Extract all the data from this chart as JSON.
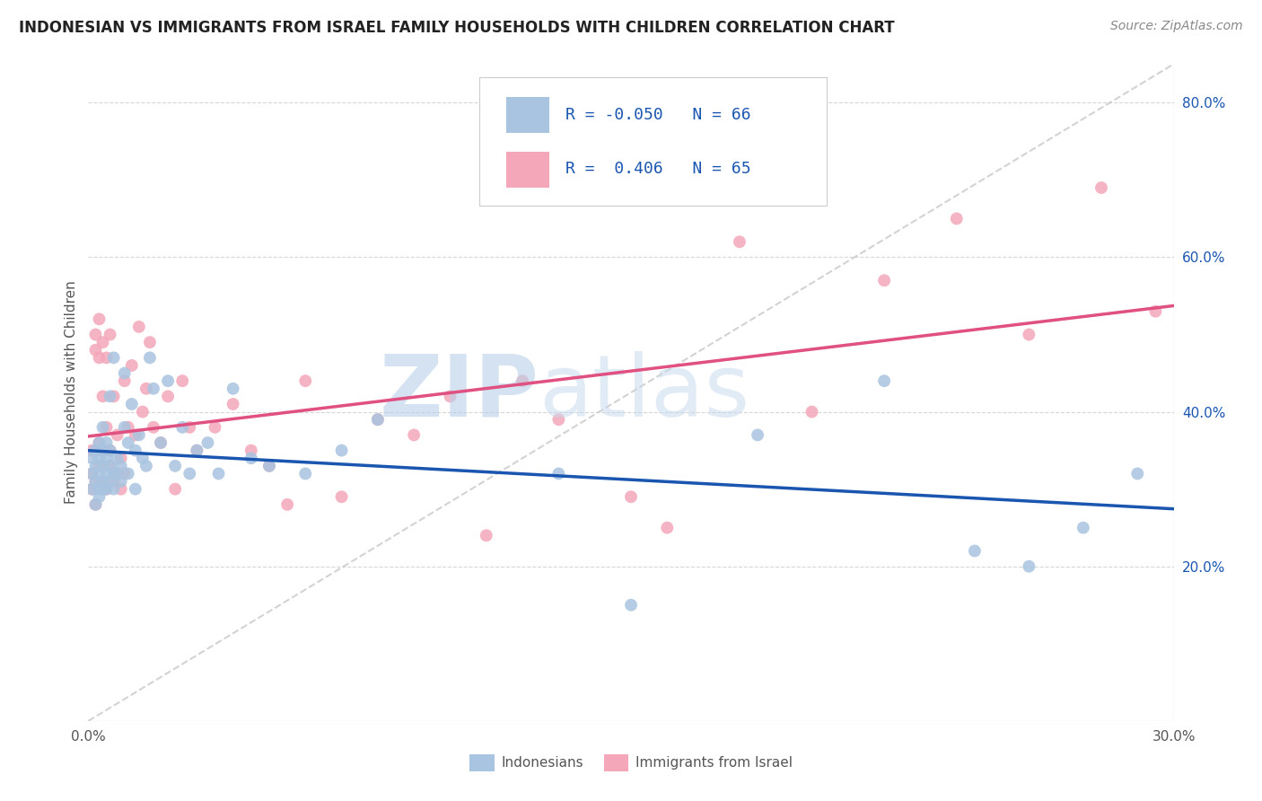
{
  "title": "INDONESIAN VS IMMIGRANTS FROM ISRAEL FAMILY HOUSEHOLDS WITH CHILDREN CORRELATION CHART",
  "source": "Source: ZipAtlas.com",
  "ylabel": "Family Households with Children",
  "x_min": 0.0,
  "x_max": 0.3,
  "y_min": 0.0,
  "y_max": 0.85,
  "x_ticks": [
    0.0,
    0.05,
    0.1,
    0.15,
    0.2,
    0.25,
    0.3
  ],
  "y_ticks_right": [
    0.2,
    0.4,
    0.6,
    0.8
  ],
  "y_tick_labels_right": [
    "20.0%",
    "40.0%",
    "60.0%",
    "80.0%"
  ],
  "legend_labels": [
    "Indonesians",
    "Immigrants from Israel"
  ],
  "R_indonesian": -0.05,
  "N_indonesian": 66,
  "R_israel": 0.406,
  "N_israel": 65,
  "color_indonesian": "#a8c4e0",
  "color_israel": "#f4a7b9",
  "line_color_indonesian": "#1a56b0",
  "line_color_israel": "#e05080",
  "line_color_diagonal": "#c8c8c8",
  "background_color": "#ffffff",
  "indonesian_x": [
    0.001,
    0.001,
    0.001,
    0.002,
    0.002,
    0.002,
    0.002,
    0.003,
    0.003,
    0.003,
    0.003,
    0.003,
    0.004,
    0.004,
    0.004,
    0.004,
    0.004,
    0.005,
    0.005,
    0.005,
    0.005,
    0.006,
    0.006,
    0.006,
    0.006,
    0.007,
    0.007,
    0.007,
    0.008,
    0.008,
    0.009,
    0.009,
    0.01,
    0.01,
    0.011,
    0.011,
    0.012,
    0.013,
    0.013,
    0.014,
    0.015,
    0.016,
    0.017,
    0.018,
    0.02,
    0.022,
    0.024,
    0.026,
    0.028,
    0.03,
    0.033,
    0.036,
    0.04,
    0.045,
    0.05,
    0.06,
    0.07,
    0.08,
    0.13,
    0.15,
    0.185,
    0.22,
    0.245,
    0.26,
    0.275,
    0.29
  ],
  "indonesian_y": [
    0.3,
    0.32,
    0.34,
    0.28,
    0.31,
    0.33,
    0.35,
    0.3,
    0.32,
    0.34,
    0.29,
    0.36,
    0.31,
    0.33,
    0.35,
    0.3,
    0.38,
    0.32,
    0.34,
    0.3,
    0.36,
    0.31,
    0.33,
    0.35,
    0.42,
    0.32,
    0.3,
    0.47,
    0.34,
    0.32,
    0.33,
    0.31,
    0.45,
    0.38,
    0.36,
    0.32,
    0.41,
    0.35,
    0.3,
    0.37,
    0.34,
    0.33,
    0.47,
    0.43,
    0.36,
    0.44,
    0.33,
    0.38,
    0.32,
    0.35,
    0.36,
    0.32,
    0.43,
    0.34,
    0.33,
    0.32,
    0.35,
    0.39,
    0.32,
    0.15,
    0.37,
    0.44,
    0.22,
    0.2,
    0.25,
    0.32
  ],
  "israel_x": [
    0.001,
    0.001,
    0.001,
    0.002,
    0.002,
    0.002,
    0.002,
    0.003,
    0.003,
    0.003,
    0.003,
    0.004,
    0.004,
    0.004,
    0.004,
    0.005,
    0.005,
    0.005,
    0.006,
    0.006,
    0.006,
    0.007,
    0.007,
    0.008,
    0.008,
    0.009,
    0.009,
    0.01,
    0.01,
    0.011,
    0.012,
    0.013,
    0.014,
    0.015,
    0.016,
    0.017,
    0.018,
    0.02,
    0.022,
    0.024,
    0.026,
    0.028,
    0.03,
    0.035,
    0.04,
    0.045,
    0.05,
    0.055,
    0.06,
    0.07,
    0.08,
    0.09,
    0.1,
    0.11,
    0.12,
    0.13,
    0.15,
    0.16,
    0.18,
    0.2,
    0.22,
    0.24,
    0.26,
    0.28,
    0.295
  ],
  "israel_y": [
    0.3,
    0.32,
    0.35,
    0.28,
    0.31,
    0.5,
    0.48,
    0.33,
    0.52,
    0.47,
    0.36,
    0.31,
    0.49,
    0.42,
    0.35,
    0.3,
    0.47,
    0.38,
    0.33,
    0.5,
    0.35,
    0.31,
    0.42,
    0.32,
    0.37,
    0.3,
    0.34,
    0.44,
    0.32,
    0.38,
    0.46,
    0.37,
    0.51,
    0.4,
    0.43,
    0.49,
    0.38,
    0.36,
    0.42,
    0.3,
    0.44,
    0.38,
    0.35,
    0.38,
    0.41,
    0.35,
    0.33,
    0.28,
    0.44,
    0.29,
    0.39,
    0.37,
    0.42,
    0.24,
    0.44,
    0.39,
    0.29,
    0.25,
    0.62,
    0.4,
    0.57,
    0.65,
    0.5,
    0.69,
    0.53
  ]
}
